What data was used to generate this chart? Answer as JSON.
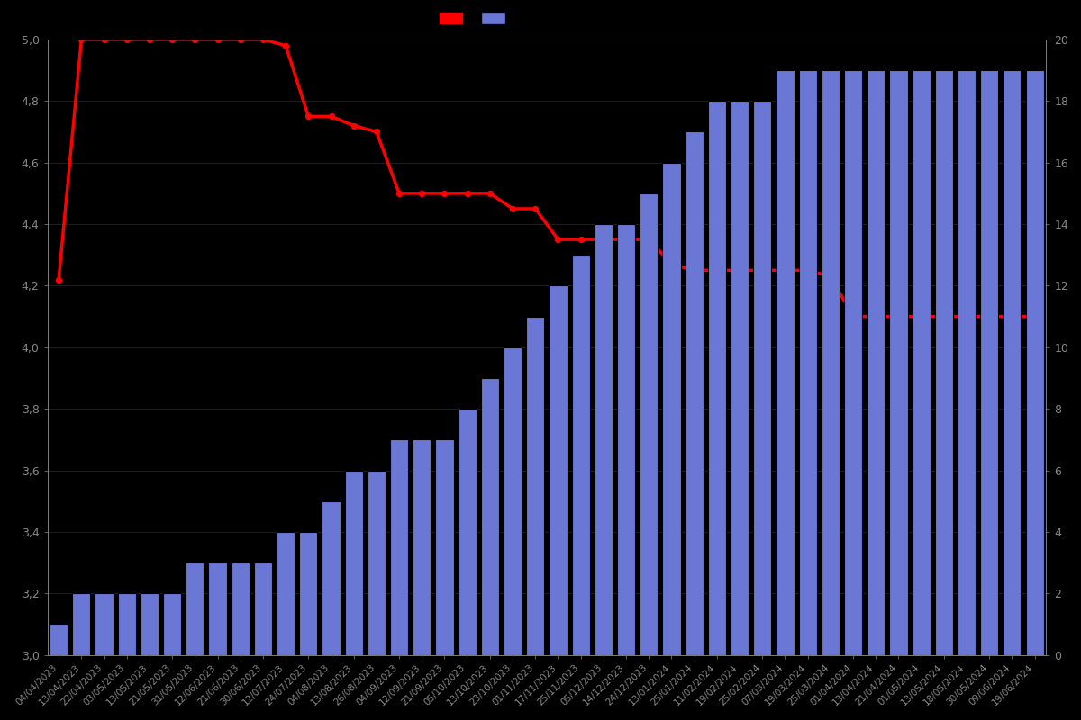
{
  "background_color": "#000000",
  "bar_color": "#6b77d4",
  "bar_edge_color": "#000000",
  "line_color": "#ff0000",
  "tick_color": "#888888",
  "grid_color": "#2a2a2a",
  "ylim_left": [
    3.0,
    5.0
  ],
  "ylim_right": [
    0,
    20
  ],
  "dates": [
    "04/04/2023",
    "13/04/2023",
    "22/04/2023",
    "03/05/2023",
    "13/05/2023",
    "21/05/2023",
    "31/05/2023",
    "12/06/2023",
    "21/06/2023",
    "30/06/2023",
    "12/07/2023",
    "24/07/2023",
    "04/08/2023",
    "13/08/2023",
    "26/08/2023",
    "04/09/2023",
    "12/09/2023",
    "21/09/2023",
    "05/10/2023",
    "13/10/2023",
    "23/10/2023",
    "01/11/2023",
    "17/11/2023",
    "25/11/2023",
    "05/12/2023",
    "14/12/2023",
    "24/12/2023",
    "13/01/2024",
    "25/01/2024",
    "11/02/2024",
    "19/02/2024",
    "25/02/2024",
    "07/03/2024",
    "19/03/2024",
    "25/03/2024",
    "01/04/2024",
    "13/04/2024",
    "21/04/2024",
    "01/05/2024",
    "13/05/2024",
    "18/05/2024",
    "30/05/2024",
    "09/06/2024",
    "19/06/2024"
  ],
  "bar_values": [
    1,
    2,
    2,
    2,
    2,
    2,
    3,
    3,
    3,
    3,
    4,
    4,
    5,
    6,
    6,
    7,
    7,
    7,
    8,
    9,
    10,
    11,
    12,
    13,
    14,
    14,
    15,
    16,
    17,
    18,
    18,
    18,
    19,
    19,
    19,
    19,
    19,
    19,
    19,
    19,
    19,
    19,
    19,
    19
  ],
  "line_values": [
    4.22,
    5.0,
    5.0,
    5.0,
    5.0,
    5.0,
    5.0,
    5.0,
    5.0,
    5.0,
    4.98,
    4.75,
    4.75,
    4.72,
    4.7,
    4.5,
    4.5,
    4.5,
    4.5,
    4.5,
    4.45,
    4.45,
    4.35,
    4.35,
    4.35,
    4.35,
    4.35,
    4.27,
    4.25,
    4.25,
    4.25,
    4.25,
    4.25,
    4.25,
    4.23,
    4.1,
    4.1,
    4.1,
    4.1,
    4.1,
    4.1,
    4.1,
    4.1,
    4.1
  ],
  "yticks_left": [
    3.0,
    3.2,
    3.4,
    3.6,
    3.8,
    4.0,
    4.2,
    4.4,
    4.6,
    4.8,
    5.0
  ],
  "yticks_right": [
    0,
    2,
    4,
    6,
    8,
    10,
    12,
    14,
    16,
    18,
    20
  ]
}
